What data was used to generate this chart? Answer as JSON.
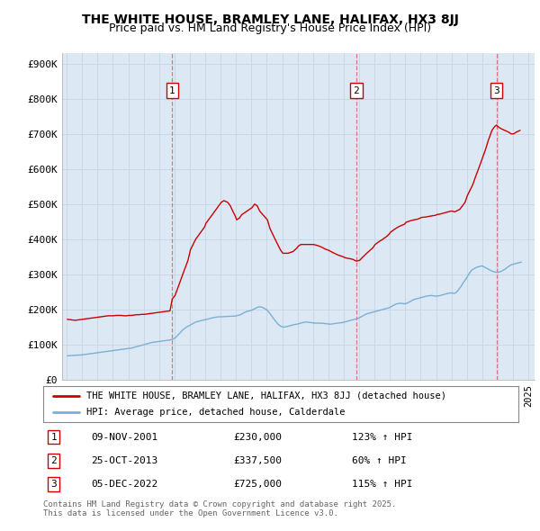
{
  "title": "THE WHITE HOUSE, BRAMLEY LANE, HALIFAX, HX3 8JJ",
  "subtitle": "Price paid vs. HM Land Registry's House Price Index (HPI)",
  "bg_color": "#dce9f5",
  "red_color": "#cc0000",
  "blue_color": "#7ab0d4",
  "sale_date_nums": [
    2001.86,
    2013.81,
    2022.92
  ],
  "sale_labels": [
    "1",
    "2",
    "3"
  ],
  "sale_info": [
    {
      "label": "1",
      "date": "09-NOV-2001",
      "price": "£230,000",
      "pct": "123% ↑ HPI"
    },
    {
      "label": "2",
      "date": "25-OCT-2013",
      "price": "£337,500",
      "pct": "60% ↑ HPI"
    },
    {
      "label": "3",
      "date": "05-DEC-2022",
      "price": "£725,000",
      "pct": "115% ↑ HPI"
    }
  ],
  "legend_line1": "THE WHITE HOUSE, BRAMLEY LANE, HALIFAX, HX3 8JJ (detached house)",
  "legend_line2": "HPI: Average price, detached house, Calderdale",
  "footer": "Contains HM Land Registry data © Crown copyright and database right 2025.\nThis data is licensed under the Open Government Licence v3.0.",
  "ylim": [
    0,
    930000
  ],
  "yticks": [
    0,
    100000,
    200000,
    300000,
    400000,
    500000,
    600000,
    700000,
    800000,
    900000
  ],
  "ytick_labels": [
    "£0",
    "£100K",
    "£200K",
    "£300K",
    "£400K",
    "£500K",
    "£600K",
    "£700K",
    "£800K",
    "£900K"
  ],
  "hpi_dates": [
    1995.04,
    1995.12,
    1995.21,
    1995.29,
    1995.38,
    1995.46,
    1995.54,
    1995.63,
    1995.71,
    1995.79,
    1995.88,
    1995.96,
    1996.04,
    1996.12,
    1996.21,
    1996.29,
    1996.38,
    1996.46,
    1996.54,
    1996.63,
    1996.71,
    1996.79,
    1996.88,
    1996.96,
    1997.04,
    1997.12,
    1997.21,
    1997.29,
    1997.38,
    1997.46,
    1997.54,
    1997.63,
    1997.71,
    1997.79,
    1997.88,
    1997.96,
    1998.04,
    1998.12,
    1998.21,
    1998.29,
    1998.38,
    1998.46,
    1998.54,
    1998.63,
    1998.71,
    1998.79,
    1998.88,
    1998.96,
    1999.04,
    1999.12,
    1999.21,
    1999.29,
    1999.38,
    1999.46,
    1999.54,
    1999.63,
    1999.71,
    1999.79,
    1999.88,
    1999.96,
    2000.04,
    2000.12,
    2000.21,
    2000.29,
    2000.38,
    2000.46,
    2000.54,
    2000.63,
    2000.71,
    2000.79,
    2000.88,
    2000.96,
    2001.04,
    2001.12,
    2001.21,
    2001.29,
    2001.38,
    2001.46,
    2001.54,
    2001.63,
    2001.71,
    2001.79,
    2001.88,
    2001.96,
    2002.04,
    2002.12,
    2002.21,
    2002.29,
    2002.38,
    2002.46,
    2002.54,
    2002.63,
    2002.71,
    2002.79,
    2002.88,
    2002.96,
    2003.04,
    2003.12,
    2003.21,
    2003.29,
    2003.38,
    2003.46,
    2003.54,
    2003.63,
    2003.71,
    2003.79,
    2003.88,
    2003.96,
    2004.04,
    2004.12,
    2004.21,
    2004.29,
    2004.38,
    2004.46,
    2004.54,
    2004.63,
    2004.71,
    2004.79,
    2004.88,
    2004.96,
    2005.04,
    2005.12,
    2005.21,
    2005.29,
    2005.38,
    2005.46,
    2005.54,
    2005.63,
    2005.71,
    2005.79,
    2005.88,
    2005.96,
    2006.04,
    2006.12,
    2006.21,
    2006.29,
    2006.38,
    2006.46,
    2006.54,
    2006.63,
    2006.71,
    2006.79,
    2006.88,
    2006.96,
    2007.04,
    2007.12,
    2007.21,
    2007.29,
    2007.38,
    2007.46,
    2007.54,
    2007.63,
    2007.71,
    2007.79,
    2007.88,
    2007.96,
    2008.04,
    2008.12,
    2008.21,
    2008.29,
    2008.38,
    2008.46,
    2008.54,
    2008.63,
    2008.71,
    2008.79,
    2008.88,
    2008.96,
    2009.04,
    2009.12,
    2009.21,
    2009.29,
    2009.38,
    2009.46,
    2009.54,
    2009.63,
    2009.71,
    2009.79,
    2009.88,
    2009.96,
    2010.04,
    2010.12,
    2010.21,
    2010.29,
    2010.38,
    2010.46,
    2010.54,
    2010.63,
    2010.71,
    2010.79,
    2010.88,
    2010.96,
    2011.04,
    2011.12,
    2011.21,
    2011.29,
    2011.38,
    2011.46,
    2011.54,
    2011.63,
    2011.71,
    2011.79,
    2011.88,
    2011.96,
    2012.04,
    2012.12,
    2012.21,
    2012.29,
    2012.38,
    2012.46,
    2012.54,
    2012.63,
    2012.71,
    2012.79,
    2012.88,
    2012.96,
    2013.04,
    2013.12,
    2013.21,
    2013.29,
    2013.38,
    2013.46,
    2013.54,
    2013.63,
    2013.71,
    2013.79,
    2013.88,
    2013.96,
    2014.04,
    2014.12,
    2014.21,
    2014.29,
    2014.38,
    2014.46,
    2014.54,
    2014.63,
    2014.71,
    2014.79,
    2014.88,
    2014.96,
    2015.04,
    2015.12,
    2015.21,
    2015.29,
    2015.38,
    2015.46,
    2015.54,
    2015.63,
    2015.71,
    2015.79,
    2015.88,
    2015.96,
    2016.04,
    2016.12,
    2016.21,
    2016.29,
    2016.38,
    2016.46,
    2016.54,
    2016.63,
    2016.71,
    2016.79,
    2016.88,
    2016.96,
    2017.04,
    2017.12,
    2017.21,
    2017.29,
    2017.38,
    2017.46,
    2017.54,
    2017.63,
    2017.71,
    2017.79,
    2017.88,
    2017.96,
    2018.04,
    2018.12,
    2018.21,
    2018.29,
    2018.38,
    2018.46,
    2018.54,
    2018.63,
    2018.71,
    2018.79,
    2018.88,
    2018.96,
    2019.04,
    2019.12,
    2019.21,
    2019.29,
    2019.38,
    2019.46,
    2019.54,
    2019.63,
    2019.71,
    2019.79,
    2019.88,
    2019.96,
    2020.04,
    2020.12,
    2020.21,
    2020.29,
    2020.38,
    2020.46,
    2020.54,
    2020.63,
    2020.71,
    2020.79,
    2020.88,
    2020.96,
    2021.04,
    2021.12,
    2021.21,
    2021.29,
    2021.38,
    2021.46,
    2021.54,
    2021.63,
    2021.71,
    2021.79,
    2021.88,
    2021.96,
    2022.04,
    2022.12,
    2022.21,
    2022.29,
    2022.38,
    2022.46,
    2022.54,
    2022.63,
    2022.71,
    2022.79,
    2022.88,
    2022.96,
    2023.04,
    2023.12,
    2023.21,
    2023.29,
    2023.38,
    2023.46,
    2023.54,
    2023.63,
    2023.71,
    2023.79,
    2023.88,
    2023.96,
    2024.04,
    2024.12,
    2024.21,
    2024.29,
    2024.38,
    2024.46,
    2024.54
  ],
  "hpi_vals": [
    68000,
    68200,
    68500,
    68700,
    69000,
    69200,
    69400,
    69600,
    69800,
    70000,
    70200,
    70500,
    71000,
    71500,
    72000,
    72500,
    73000,
    73500,
    74000,
    74500,
    75000,
    75500,
    76000,
    76500,
    77000,
    77500,
    78000,
    78500,
    79000,
    79500,
    80000,
    80500,
    81000,
    81500,
    82000,
    82500,
    83000,
    83500,
    84000,
    84500,
    85000,
    85500,
    86000,
    86500,
    87000,
    87500,
    88000,
    88500,
    89000,
    89500,
    90000,
    91000,
    92000,
    93000,
    94000,
    95000,
    96000,
    97000,
    98000,
    99000,
    100000,
    101000,
    102000,
    103000,
    104000,
    105000,
    106000,
    106500,
    107000,
    107500,
    108000,
    108500,
    109000,
    109500,
    110000,
    110500,
    111000,
    111500,
    112000,
    112500,
    113000,
    114000,
    115000,
    117000,
    119000,
    122000,
    126000,
    130000,
    134000,
    138000,
    142000,
    145000,
    148000,
    150000,
    152000,
    154000,
    156000,
    158000,
    160000,
    162000,
    164000,
    165000,
    166000,
    167000,
    168000,
    169000,
    170000,
    170500,
    171000,
    172000,
    173000,
    174000,
    175000,
    176000,
    177000,
    177500,
    178000,
    178500,
    179000,
    179000,
    179000,
    179200,
    179500,
    179700,
    180000,
    180200,
    180400,
    180600,
    180800,
    181000,
    181000,
    181000,
    182000,
    183000,
    184000,
    185000,
    187000,
    189000,
    191000,
    193000,
    194000,
    195000,
    196000,
    197000,
    198000,
    200000,
    202000,
    204000,
    206000,
    207000,
    207500,
    207000,
    206000,
    204000,
    202000,
    200000,
    197000,
    193000,
    188000,
    183000,
    178000,
    173000,
    168000,
    163000,
    159000,
    156000,
    153000,
    151000,
    150000,
    150000,
    150500,
    151000,
    152000,
    153000,
    154000,
    155000,
    156000,
    157000,
    157500,
    158000,
    159000,
    160000,
    161000,
    162000,
    163000,
    163500,
    164000,
    164000,
    163500,
    163000,
    162500,
    162000,
    161500,
    161000,
    161000,
    161000,
    161000,
    161000,
    161000,
    160500,
    160000,
    159500,
    159000,
    158500,
    158000,
    158000,
    158500,
    159000,
    159500,
    160000,
    160500,
    161000,
    161500,
    162000,
    162500,
    163000,
    164000,
    165000,
    166000,
    167000,
    168000,
    169000,
    170000,
    171000,
    172000,
    173000,
    174000,
    175000,
    177000,
    179000,
    181000,
    183000,
    185000,
    187000,
    188000,
    189000,
    190000,
    191000,
    192000,
    193000,
    194000,
    195000,
    196000,
    197000,
    198000,
    199000,
    200000,
    201000,
    202000,
    203000,
    204000,
    205000,
    207000,
    209000,
    211000,
    213000,
    215000,
    216000,
    217000,
    217500,
    217500,
    217000,
    216500,
    216000,
    217000,
    218000,
    220000,
    222000,
    224000,
    226000,
    228000,
    229000,
    230000,
    231000,
    232000,
    233000,
    234000,
    235000,
    236000,
    237000,
    238000,
    238500,
    239000,
    239500,
    239500,
    239000,
    238500,
    238000,
    238000,
    238500,
    239000,
    240000,
    241000,
    242000,
    243000,
    244000,
    245000,
    246000,
    246500,
    247000,
    247000,
    246000,
    246000,
    248000,
    252000,
    256000,
    261000,
    266000,
    272000,
    278000,
    283000,
    288000,
    294000,
    300000,
    306000,
    311000,
    314000,
    316000,
    318000,
    320000,
    321000,
    322000,
    323000,
    324000,
    323000,
    321000,
    319000,
    317000,
    315000,
    313000,
    311000,
    309000,
    308000,
    307000,
    306000,
    306000,
    306000,
    307000,
    308000,
    310000,
    312000,
    314000,
    317000,
    320000,
    323000,
    325000,
    327000,
    328000,
    329000,
    330000,
    331000,
    332000,
    333000,
    334000,
    335000
  ],
  "price_dates": [
    1995.04,
    1995.21,
    1995.38,
    1995.54,
    1995.71,
    1995.88,
    1996.04,
    1996.21,
    1996.38,
    1996.54,
    1996.71,
    1996.88,
    1997.04,
    1997.21,
    1997.38,
    1997.54,
    1997.71,
    1997.88,
    1998.04,
    1998.21,
    1998.38,
    1998.54,
    1998.71,
    1998.88,
    1999.04,
    1999.21,
    1999.38,
    1999.54,
    1999.71,
    1999.88,
    2000.04,
    2000.21,
    2000.38,
    2000.54,
    2000.71,
    2000.88,
    2001.04,
    2001.21,
    2001.38,
    2001.54,
    2001.71,
    2001.86,
    2002.04,
    2002.21,
    2002.54,
    2002.88,
    2003.04,
    2003.38,
    2003.71,
    2003.96,
    2004.04,
    2004.21,
    2004.46,
    2004.71,
    2004.88,
    2005.04,
    2005.21,
    2005.46,
    2005.63,
    2005.79,
    2005.96,
    2006.04,
    2006.21,
    2006.38,
    2006.54,
    2006.71,
    2007.04,
    2007.21,
    2007.38,
    2007.54,
    2008.04,
    2008.21,
    2008.54,
    2008.88,
    2009.04,
    2009.38,
    2009.71,
    2009.96,
    2010.04,
    2010.21,
    2010.54,
    2010.88,
    2011.04,
    2011.29,
    2011.54,
    2011.79,
    2012.04,
    2012.29,
    2012.63,
    2012.96,
    2013.04,
    2013.21,
    2013.46,
    2013.63,
    2013.81,
    2014.04,
    2014.21,
    2014.54,
    2014.88,
    2015.04,
    2015.29,
    2015.54,
    2015.79,
    2015.96,
    2016.04,
    2016.29,
    2016.54,
    2016.79,
    2016.96,
    2017.04,
    2017.29,
    2017.54,
    2017.79,
    2017.96,
    2018.04,
    2018.29,
    2018.54,
    2018.79,
    2018.96,
    2019.04,
    2019.29,
    2019.54,
    2019.79,
    2019.96,
    2020.04,
    2020.21,
    2020.54,
    2020.71,
    2020.88,
    2020.96,
    2021.04,
    2021.21,
    2021.38,
    2021.54,
    2021.71,
    2021.88,
    2022.04,
    2022.21,
    2022.38,
    2022.63,
    2022.79,
    2022.92,
    2023.04,
    2023.21,
    2023.46,
    2023.71,
    2023.88,
    2024.04,
    2024.21,
    2024.46
  ],
  "price_vals": [
    172000,
    171000,
    170000,
    169000,
    170000,
    171000,
    172000,
    173000,
    174000,
    175000,
    176000,
    177000,
    178000,
    179000,
    180000,
    181000,
    182000,
    182000,
    182000,
    183000,
    183000,
    183000,
    182000,
    182000,
    183000,
    183000,
    184000,
    185000,
    185000,
    186000,
    186000,
    187000,
    188000,
    189000,
    190000,
    191000,
    192000,
    193000,
    194000,
    195000,
    196000,
    230000,
    240000,
    260000,
    300000,
    340000,
    370000,
    400000,
    420000,
    435000,
    445000,
    455000,
    470000,
    485000,
    495000,
    505000,
    510000,
    505000,
    495000,
    480000,
    465000,
    455000,
    460000,
    470000,
    475000,
    480000,
    490000,
    500000,
    495000,
    480000,
    455000,
    430000,
    400000,
    370000,
    360000,
    360000,
    365000,
    375000,
    380000,
    385000,
    385000,
    385000,
    385000,
    382000,
    378000,
    372000,
    368000,
    362000,
    355000,
    350000,
    348000,
    346000,
    344000,
    342000,
    337500,
    340000,
    348000,
    362000,
    375000,
    385000,
    393000,
    400000,
    408000,
    415000,
    420000,
    428000,
    435000,
    440000,
    443000,
    448000,
    452000,
    455000,
    457000,
    460000,
    462000,
    463000,
    465000,
    467000,
    468000,
    470000,
    472000,
    475000,
    478000,
    480000,
    480000,
    478000,
    485000,
    495000,
    505000,
    515000,
    525000,
    540000,
    555000,
    575000,
    595000,
    615000,
    635000,
    655000,
    680000,
    710000,
    720000,
    725000,
    720000,
    715000,
    710000,
    705000,
    700000,
    700000,
    705000,
    710000
  ]
}
